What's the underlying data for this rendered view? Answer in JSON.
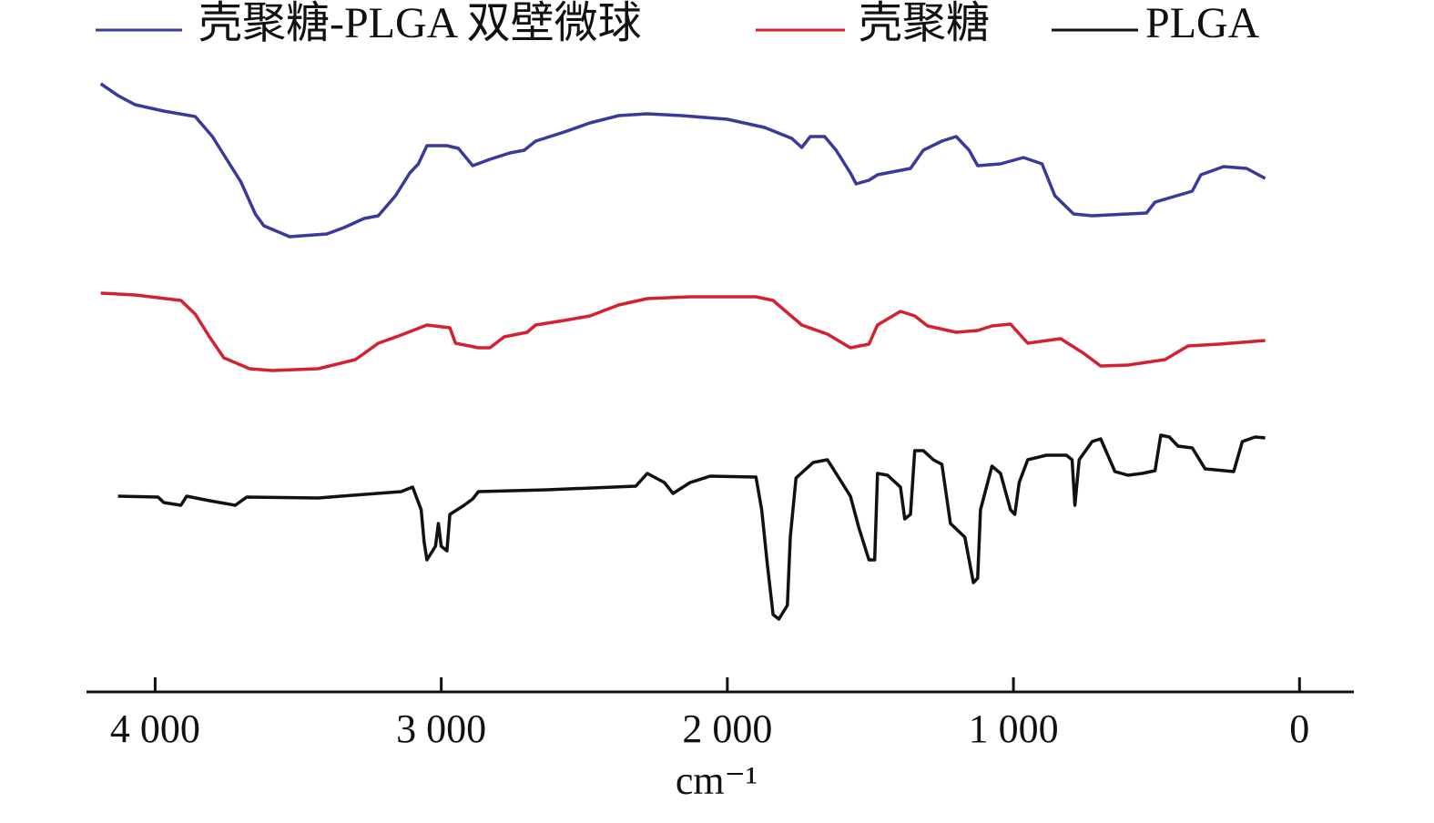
{
  "chart_data": {
    "type": "line",
    "xlabel": "cm⁻¹",
    "xlim": [
      4240,
      -190
    ],
    "xticks": [
      {
        "value": 4000,
        "label": "4 000"
      },
      {
        "value": 3000,
        "label": "3 000"
      },
      {
        "value": 2000,
        "label": "2 000"
      },
      {
        "value": 1000,
        "label": "1 000"
      },
      0
    ],
    "ylim": [
      0,
      680
    ],
    "legend": "top",
    "series": [
      {
        "name": "壳聚糖-PLGA 双壁微球",
        "color": "#3a3a9a",
        "x": [
          4190,
          4130,
          4070,
          3970,
          3860,
          3800,
          3750,
          3700,
          3650,
          3620,
          3530,
          3400,
          3340,
          3270,
          3220,
          3160,
          3110,
          3080,
          3050,
          2980,
          2940,
          2890,
          2830,
          2760,
          2710,
          2670,
          2570,
          2480,
          2380,
          2280,
          2160,
          2000,
          1870,
          1775,
          1740,
          1710,
          1660,
          1620,
          1570,
          1550,
          1505,
          1475,
          1360,
          1315,
          1250,
          1200,
          1155,
          1125,
          1045,
          965,
          900,
          855,
          790,
          725,
          535,
          505,
          375,
          345,
          265,
          185,
          120
        ],
        "values": [
          668,
          655,
          645,
          638,
          632,
          610,
          585,
          560,
          525,
          512,
          500,
          503,
          510,
          520,
          523,
          545,
          570,
          580,
          600,
          600,
          597,
          578,
          585,
          592,
          595,
          605,
          615,
          625,
          633,
          635,
          633,
          629,
          620,
          608,
          598,
          610,
          610,
          595,
          570,
          558,
          562,
          568,
          575,
          595,
          605,
          610,
          595,
          578,
          580,
          587,
          580,
          545,
          525,
          523,
          526,
          538,
          550,
          568,
          577,
          575,
          564
        ]
      },
      {
        "name": "壳聚糖",
        "color": "#d4212f",
        "x": [
          4190,
          4070,
          3910,
          3860,
          3810,
          3760,
          3670,
          3590,
          3430,
          3300,
          3220,
          3140,
          3050,
          2970,
          2950,
          2870,
          2830,
          2780,
          2700,
          2670,
          2570,
          2480,
          2380,
          2280,
          2130,
          1900,
          1840,
          1740,
          1650,
          1570,
          1505,
          1475,
          1395,
          1345,
          1300,
          1200,
          1125,
          1075,
          1010,
          950,
          835,
          755,
          695,
          600,
          470,
          390,
          280,
          120
        ],
        "values": [
          438,
          436,
          430,
          415,
          390,
          367,
          355,
          353,
          355,
          365,
          383,
          392,
          403,
          400,
          383,
          378,
          378,
          390,
          395,
          403,
          408,
          413,
          425,
          432,
          434,
          434,
          430,
          403,
          393,
          378,
          382,
          403,
          418,
          413,
          402,
          395,
          397,
          402,
          404,
          383,
          388,
          372,
          358,
          359,
          365,
          380,
          382,
          386
        ]
      },
      {
        "name": "PLGA",
        "color": "#111111",
        "x": [
          4130,
          3990,
          3970,
          3910,
          3890,
          3810,
          3720,
          3680,
          3430,
          3350,
          3140,
          3100,
          3070,
          3060,
          3050,
          3020,
          3010,
          3000,
          2980,
          2970,
          2920,
          2890,
          2870,
          2630,
          2320,
          2280,
          2220,
          2190,
          2130,
          2060,
          1900,
          1880,
          1860,
          1840,
          1820,
          1790,
          1780,
          1760,
          1700,
          1650,
          1620,
          1570,
          1540,
          1505,
          1485,
          1475,
          1440,
          1395,
          1380,
          1360,
          1345,
          1315,
          1280,
          1250,
          1220,
          1170,
          1140,
          1125,
          1115,
          1075,
          1045,
          1010,
          995,
          980,
          950,
          885,
          815,
          795,
          785,
          770,
          725,
          695,
          645,
          600,
          550,
          505,
          485,
          455,
          425,
          375,
          330,
          230,
          200,
          155,
          120
        ],
        "values": [
          215,
          214,
          208,
          205,
          215,
          210,
          205,
          214,
          213,
          215,
          220,
          225,
          200,
          165,
          145,
          160,
          185,
          160,
          155,
          195,
          205,
          212,
          220,
          222,
          226,
          240,
          230,
          218,
          230,
          237,
          236,
          200,
          140,
          85,
          80,
          95,
          170,
          235,
          252,
          255,
          240,
          215,
          180,
          145,
          145,
          240,
          238,
          225,
          190,
          195,
          265,
          265,
          255,
          250,
          185,
          170,
          120,
          125,
          200,
          248,
          240,
          200,
          195,
          230,
          255,
          260,
          260,
          255,
          205,
          255,
          275,
          278,
          242,
          238,
          240,
          243,
          282,
          280,
          270,
          268,
          245,
          242,
          275,
          280,
          279
        ]
      }
    ]
  }
}
